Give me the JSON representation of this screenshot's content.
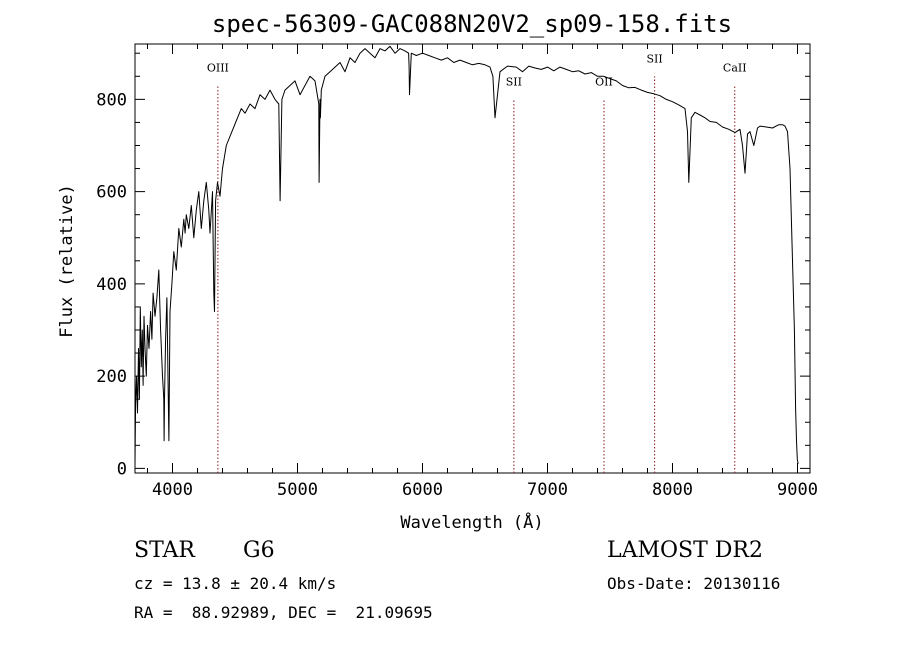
{
  "chart_data": {
    "type": "line",
    "title": "spec-56309-GAC088N20V2_sp09-158.fits",
    "xlabel": "Wavelength (Å)",
    "ylabel": "Flux (relative)",
    "xlim": [
      3700,
      9100
    ],
    "ylim": [
      -10,
      920
    ],
    "xticks": [
      4000,
      5000,
      6000,
      7000,
      8000,
      9000
    ],
    "yticks": [
      0,
      200,
      400,
      600,
      800
    ],
    "grid": false,
    "series": [
      {
        "x": [
          3700,
          3705,
          3712,
          3720,
          3728,
          3735,
          3742,
          3750,
          3758,
          3765,
          3772,
          3780,
          3790,
          3800,
          3812,
          3825,
          3835,
          3845,
          3860,
          3875,
          3890,
          3905,
          3920,
          3930,
          3933,
          3936,
          3945,
          3955,
          3968,
          3971,
          3980,
          3995,
          4010,
          4030,
          4050,
          4070,
          4090,
          4101,
          4110,
          4130,
          4150,
          4170,
          4190,
          4210,
          4230,
          4250,
          4270,
          4290,
          4300,
          4320,
          4330,
          4336,
          4345,
          4360,
          4380,
          4400,
          4430,
          4460,
          4490,
          4520,
          4550,
          4580,
          4620,
          4660,
          4700,
          4740,
          4780,
          4820,
          4850,
          4861,
          4875,
          4900,
          4940,
          4980,
          5020,
          5060,
          5100,
          5140,
          5170,
          5173,
          5180,
          5183,
          5190,
          5220,
          5260,
          5300,
          5340,
          5380,
          5420,
          5460,
          5500,
          5540,
          5580,
          5620,
          5660,
          5700,
          5740,
          5780,
          5820,
          5860,
          5889,
          5893,
          5896,
          5910,
          5950,
          6000,
          6050,
          6100,
          6150,
          6200,
          6250,
          6300,
          6350,
          6400,
          6450,
          6500,
          6540,
          6563,
          6580,
          6620,
          6680,
          6750,
          6800,
          6850,
          6900,
          6950,
          7000,
          7050,
          7100,
          7150,
          7200,
          7250,
          7300,
          7350,
          7400,
          7450,
          7500,
          7550,
          7600,
          7650,
          7700,
          7750,
          7800,
          7850,
          7900,
          7950,
          8000,
          8050,
          8100,
          8120,
          8130,
          8150,
          8180,
          8220,
          8260,
          8300,
          8350,
          8400,
          8450,
          8500,
          8540,
          8560,
          8580,
          8600,
          8620,
          8650,
          8662,
          8680,
          8700,
          8750,
          8800,
          8850,
          8880,
          8900,
          8920,
          8940,
          8960,
          8975,
          8985,
          8992,
          8998,
          9005
        ],
        "y": [
          10,
          140,
          200,
          120,
          260,
          150,
          350,
          220,
          300,
          180,
          330,
          260,
          200,
          310,
          260,
          340,
          280,
          380,
          330,
          370,
          430,
          300,
          200,
          150,
          60,
          150,
          280,
          370,
          120,
          60,
          340,
          400,
          470,
          430,
          520,
          480,
          540,
          510,
          550,
          520,
          570,
          500,
          560,
          600,
          520,
          580,
          620,
          560,
          510,
          600,
          380,
          340,
          580,
          620,
          590,
          650,
          700,
          720,
          740,
          760,
          780,
          770,
          790,
          780,
          810,
          800,
          820,
          800,
          790,
          580,
          800,
          820,
          830,
          840,
          810,
          830,
          850,
          840,
          790,
          620,
          800,
          760,
          820,
          850,
          860,
          870,
          880,
          860,
          890,
          880,
          900,
          910,
          900,
          890,
          910,
          905,
          915,
          900,
          910,
          905,
          900,
          870,
          810,
          900,
          895,
          900,
          895,
          890,
          885,
          890,
          880,
          885,
          880,
          875,
          878,
          875,
          870,
          850,
          760,
          860,
          872,
          870,
          860,
          872,
          868,
          865,
          870,
          862,
          870,
          865,
          860,
          862,
          855,
          858,
          850,
          850,
          845,
          840,
          830,
          825,
          826,
          820,
          815,
          812,
          808,
          800,
          795,
          788,
          780,
          730,
          620,
          760,
          772,
          766,
          760,
          752,
          750,
          740,
          735,
          728,
          735,
          700,
          640,
          725,
          730,
          700,
          715,
          738,
          742,
          740,
          738,
          745,
          745,
          742,
          730,
          650,
          450,
          300,
          130,
          60,
          20,
          10
        ]
      }
    ],
    "line_markers": [
      {
        "label": "OIII",
        "x": 4363,
        "label_y": 860
      },
      {
        "label": "SII",
        "x": 6731,
        "label_y": 830
      },
      {
        "label": "OII",
        "x": 7452,
        "label_y": 830
      },
      {
        "label": "SII",
        "x": 7857,
        "label_y": 880
      },
      {
        "label": "CaII",
        "x": 8498,
        "label_y": 860
      }
    ]
  },
  "info": {
    "object_class": "STAR",
    "subclass": "G6",
    "survey": "LAMOST DR2",
    "cz": "cz = 13.8 ± 20.4 km/s",
    "obs_date": "Obs-Date: 20130116",
    "coords": "RA =  88.92989, DEC =  21.09695"
  },
  "colors": {
    "spectrum": "#000000",
    "marker_line": "#8b1a1a",
    "axis": "#000000"
  }
}
